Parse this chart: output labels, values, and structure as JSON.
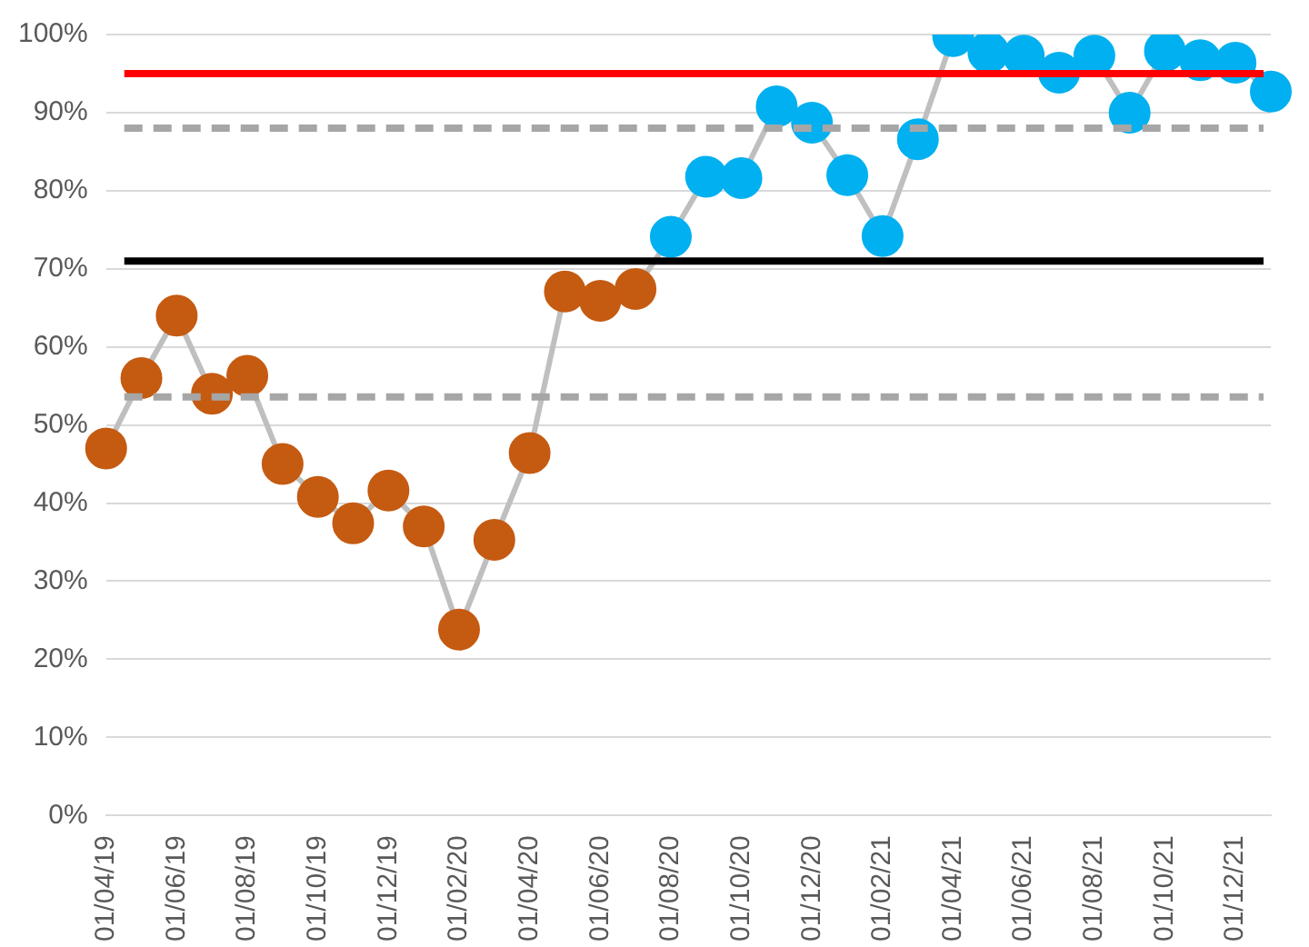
{
  "chart_data": {
    "type": "line",
    "categories": [
      "01/04/19",
      null,
      "01/06/19",
      null,
      "01/08/19",
      null,
      "01/10/19",
      null,
      "01/12/19",
      null,
      "01/02/20",
      null,
      "01/04/20",
      null,
      "01/06/20",
      null,
      "01/08/20",
      null,
      "01/10/20",
      null,
      "01/12/20",
      null,
      "01/02/21",
      null,
      "01/04/21",
      null,
      "01/06/21",
      null,
      "01/08/21",
      null,
      "01/10/21",
      null,
      "01/12/21",
      null
    ],
    "series": [
      {
        "color": "#bfbfbf",
        "colors": [
          "#c55a11",
          "#c55a11",
          "#c55a11",
          "#c55a11",
          "#c55a11",
          "#c55a11",
          "#c55a11",
          "#c55a11",
          "#c55a11",
          "#c55a11",
          "#c55a11",
          "#c55a11",
          "#c55a11",
          "#c55a11",
          "#c55a11",
          "#c55a11",
          "#00b0f0",
          "#00b0f0",
          "#00b0f0",
          "#00b0f0",
          "#00b0f0",
          "#00b0f0",
          "#00b0f0",
          "#00b0f0",
          "#00b0f0",
          "#00b0f0",
          "#00b0f0",
          "#00b0f0",
          "#00b0f0",
          "#00b0f0",
          "#00b0f0",
          "#00b0f0",
          "#00b0f0",
          "#00b0f0"
        ],
        "values": [
          47,
          56,
          64,
          54,
          56.3,
          45,
          40.8,
          37.4,
          41.6,
          37,
          23.8,
          35.3,
          46.4,
          67.1,
          65.9,
          67.4,
          74.1,
          81.8,
          81.6,
          90.8,
          88.7,
          82,
          74.2,
          86.6,
          99.8,
          97.7,
          97.3,
          95.1,
          97.3,
          90,
          97.9,
          96.7,
          96.4,
          92.7
        ]
      }
    ],
    "ylim": [
      0,
      100
    ],
    "yticks": [
      {
        "value": 0,
        "label": "0%"
      },
      {
        "value": 10,
        "label": "10%"
      },
      {
        "value": 20,
        "label": "20%"
      },
      {
        "value": 30,
        "label": "30%"
      },
      {
        "value": 40,
        "label": "40%"
      },
      {
        "value": 50,
        "label": "50%"
      },
      {
        "value": 60,
        "label": "60%"
      },
      {
        "value": 70,
        "label": "70%"
      },
      {
        "value": 80,
        "label": "80%"
      },
      {
        "value": 90,
        "label": "90%"
      },
      {
        "value": 100,
        "label": "100%"
      }
    ],
    "grid": "y",
    "legend": false,
    "marker": "circle",
    "line_style": "solid",
    "ref_lines": [
      {
        "axis": "y",
        "value": 95,
        "color": "#ff0000",
        "line_style": "solid"
      },
      {
        "axis": "y",
        "value": 88,
        "color": "#a6a6a6",
        "line_style": "dashed"
      },
      {
        "axis": "y",
        "value": 71,
        "color": "#000000",
        "line_style": "solid"
      },
      {
        "axis": "y",
        "value": 53.6,
        "color": "#a6a6a6",
        "line_style": "dashed"
      }
    ]
  }
}
